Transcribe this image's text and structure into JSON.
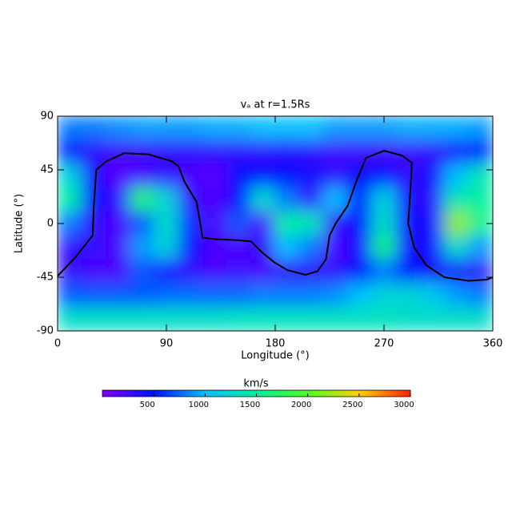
{
  "chart_data": {
    "type": "heatmap",
    "title": "vₐ at r=1.5Rs",
    "xlabel": "Longitude (°)",
    "ylabel": "Latitude (°)",
    "x": [
      10,
      30,
      50,
      70,
      90,
      110,
      130,
      150,
      170,
      190,
      210,
      230,
      250,
      270,
      290,
      310,
      330,
      350
    ],
    "y": [
      80,
      60,
      40,
      20,
      0,
      -20,
      -40,
      -60,
      -80
    ],
    "z": [
      [
        800,
        800,
        850,
        900,
        900,
        900,
        950,
        950,
        1000,
        1000,
        1000,
        900,
        900,
        900,
        950,
        950,
        950,
        900
      ],
      [
        500,
        300,
        250,
        250,
        300,
        300,
        300,
        300,
        300,
        350,
        300,
        250,
        250,
        250,
        250,
        300,
        400,
        500
      ],
      [
        1200,
        400,
        150,
        200,
        300,
        200,
        150,
        500,
        500,
        500,
        400,
        300,
        500,
        500,
        300,
        400,
        1000,
        1400
      ],
      [
        1500,
        500,
        300,
        1700,
        1200,
        300,
        200,
        500,
        1300,
        800,
        300,
        1000,
        500,
        1200,
        400,
        300,
        1400,
        1500
      ],
      [
        800,
        300,
        200,
        700,
        1300,
        600,
        200,
        700,
        200,
        1500,
        1400,
        300,
        500,
        1300,
        400,
        400,
        2200,
        1600
      ],
      [
        300,
        300,
        200,
        900,
        1200,
        500,
        200,
        200,
        300,
        1000,
        800,
        200,
        400,
        1600,
        400,
        400,
        1300,
        900
      ],
      [
        300,
        200,
        200,
        700,
        400,
        300,
        200,
        250,
        200,
        300,
        300,
        300,
        500,
        800,
        500,
        400,
        400,
        300
      ],
      [
        700,
        700,
        700,
        700,
        750,
        750,
        750,
        750,
        800,
        800,
        800,
        850,
        1000,
        1200,
        1200,
        1100,
        900,
        800
      ],
      [
        1300,
        1300,
        1300,
        1300,
        1300,
        1300,
        1300,
        1350,
        1350,
        1350,
        1350,
        1350,
        1350,
        1350,
        1300,
        1300,
        1300,
        1300
      ]
    ],
    "xlim": [
      0,
      360
    ],
    "ylim": [
      -90,
      90
    ],
    "xticks": [
      0,
      90,
      180,
      270,
      360
    ],
    "yticks": [
      -90,
      -45,
      0,
      45,
      90
    ],
    "contour": {
      "color": "#000000",
      "x": [
        0,
        15,
        29,
        30,
        32,
        40,
        55,
        75,
        95,
        100,
        105,
        115,
        118,
        120,
        130,
        150,
        160,
        170,
        180,
        190,
        205,
        215,
        222,
        225,
        230,
        240,
        247,
        255,
        270,
        285,
        293,
        292,
        290,
        295,
        305,
        320,
        340,
        355,
        360
      ],
      "y": [
        -44,
        -28,
        -10,
        15,
        45,
        52,
        59,
        58,
        52,
        48,
        35,
        18,
        0,
        -12,
        -13,
        -14,
        -15,
        -25,
        -33,
        -39,
        -43,
        -40,
        -30,
        -10,
        0,
        15,
        35,
        55,
        61,
        57,
        51,
        30,
        0,
        -20,
        -35,
        -45,
        -48,
        -47,
        -45
      ]
    },
    "colorbar": {
      "label": "km/s",
      "lim": [
        0,
        3000
      ],
      "ticks": [
        500,
        1000,
        1500,
        2000,
        2500,
        3000
      ],
      "colors": [
        "#7f00ff",
        "#0010ff",
        "#00c0ff",
        "#00f0a0",
        "#50ff20",
        "#ffd000",
        "#ff2000"
      ]
    }
  }
}
